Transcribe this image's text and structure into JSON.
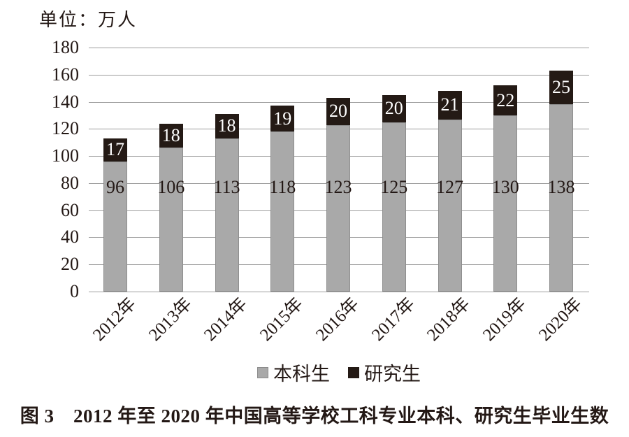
{
  "figure": {
    "unit_label": "单位：万人",
    "caption": "图 3　2012 年至 2020 年中国高等学校工科专业本科、研究生毕业生数"
  },
  "chart_data": {
    "type": "bar",
    "stacked": true,
    "title": "",
    "unit_label": "单位：万人",
    "categories": [
      "2012年",
      "2013年",
      "2014年",
      "2015年",
      "2016年",
      "2017年",
      "2018年",
      "2019年",
      "2020年"
    ],
    "series": [
      {
        "name": "本科生",
        "color": "#a9a9a9",
        "values": [
          96,
          106,
          113,
          118,
          123,
          125,
          127,
          130,
          138
        ]
      },
      {
        "name": "研究生",
        "color": "#241a15",
        "values": [
          17,
          18,
          18,
          19,
          20,
          20,
          21,
          22,
          25
        ]
      }
    ],
    "ylim": [
      0,
      180
    ],
    "yticks": [
      0,
      20,
      40,
      60,
      80,
      100,
      120,
      140,
      160,
      180
    ],
    "grid": true,
    "value_labels": true,
    "legend_position": "bottom",
    "xlabel": "",
    "ylabel": ""
  },
  "colors": {
    "undergrad_bar": "#a9a9a9",
    "grad_bar": "#241a15",
    "gridline": "#9c9c9c",
    "text": "#231815",
    "label_on_dark": "#ffffff"
  }
}
